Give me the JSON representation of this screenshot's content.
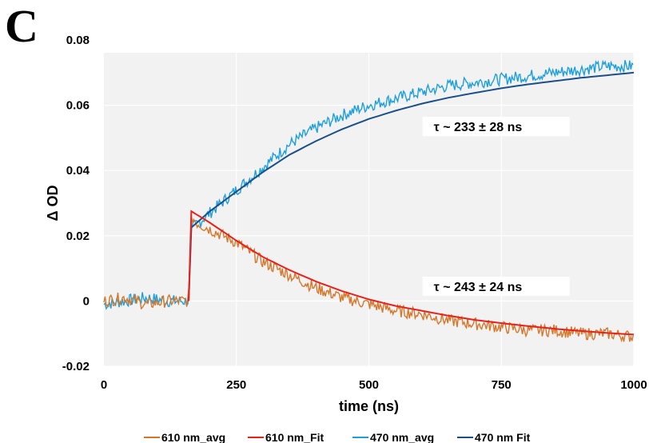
{
  "panel_label": "C",
  "colors": {
    "plot_bg": "#f2f2f2",
    "avg_610": "#d4772a",
    "fit_610": "#e8221a",
    "avg_470": "#1e9fdc",
    "fit_470": "#1b4f8a"
  },
  "chart_data": {
    "type": "line",
    "xlabel": "time (ns)",
    "ylabel": "Δ OD",
    "xlim": [
      0,
      1000
    ],
    "ylim": [
      -0.02,
      0.08
    ],
    "x_ticks": [
      0,
      250,
      500,
      750,
      1000
    ],
    "y_ticks": [
      -0.02,
      0,
      0.02,
      0.04,
      0.06,
      0.08
    ],
    "x_tick_labels": [
      "0",
      "250",
      "500",
      "750",
      "1000"
    ],
    "y_tick_labels": [
      "-0.02",
      "0",
      "0.02",
      "0.04",
      "0.06",
      "0.08"
    ],
    "grid": true,
    "legend_position": "bottom",
    "series": [
      {
        "name": "610 nm_avg",
        "style": "noisy",
        "x": [
          0,
          40,
          80,
          120,
          160,
          165,
          175,
          200,
          250,
          300,
          350,
          400,
          450,
          500,
          550,
          600,
          650,
          700,
          750,
          800,
          850,
          900,
          950,
          1000
        ],
        "y": [
          0.0,
          0.001,
          -0.001,
          0.0,
          0.0,
          0.026,
          0.024,
          0.022,
          0.018,
          0.012,
          0.008,
          0.004,
          0.001,
          -0.001,
          -0.003,
          -0.004,
          -0.006,
          -0.007,
          -0.008,
          -0.009,
          -0.009,
          -0.01,
          -0.01,
          -0.011
        ]
      },
      {
        "name": "610 nm_Fit",
        "style": "smooth",
        "x": [
          160,
          165,
          200,
          250,
          300,
          350,
          400,
          450,
          500,
          550,
          600,
          650,
          700,
          750,
          800,
          850,
          900,
          950,
          1000
        ],
        "y": [
          0.0,
          0.0275,
          0.024,
          0.0185,
          0.0135,
          0.0095,
          0.006,
          0.003,
          0.0005,
          -0.0015,
          -0.003,
          -0.0045,
          -0.0058,
          -0.0068,
          -0.0077,
          -0.0085,
          -0.0092,
          -0.0098,
          -0.0103
        ]
      },
      {
        "name": "470 nm_avg",
        "style": "noisy",
        "x": [
          0,
          40,
          80,
          120,
          160,
          165,
          200,
          250,
          300,
          350,
          400,
          450,
          500,
          550,
          600,
          650,
          700,
          750,
          800,
          850,
          900,
          950,
          1000
        ],
        "y": [
          -0.001,
          0.0,
          0.001,
          0.0,
          0.0,
          0.022,
          0.027,
          0.034,
          0.041,
          0.048,
          0.053,
          0.057,
          0.06,
          0.062,
          0.064,
          0.066,
          0.067,
          0.068,
          0.069,
          0.07,
          0.071,
          0.072,
          0.072
        ]
      },
      {
        "name": "470 nm Fit",
        "style": "smooth",
        "x": [
          160,
          165,
          200,
          250,
          300,
          350,
          400,
          450,
          500,
          550,
          600,
          650,
          700,
          750,
          800,
          850,
          900,
          950,
          1000
        ],
        "y": [
          0.0,
          0.0225,
          0.0275,
          0.0335,
          0.0395,
          0.0448,
          0.049,
          0.0527,
          0.0558,
          0.0583,
          0.0605,
          0.0623,
          0.0638,
          0.0652,
          0.0664,
          0.0674,
          0.0684,
          0.0692,
          0.07
        ]
      }
    ],
    "annotations": [
      {
        "text": "τ ~ 233 ± 28 ns",
        "x": 740,
        "y": 0.0535
      },
      {
        "text": "τ ~ 243 ± 24 ns",
        "x": 740,
        "y": 0.0045
      }
    ]
  }
}
